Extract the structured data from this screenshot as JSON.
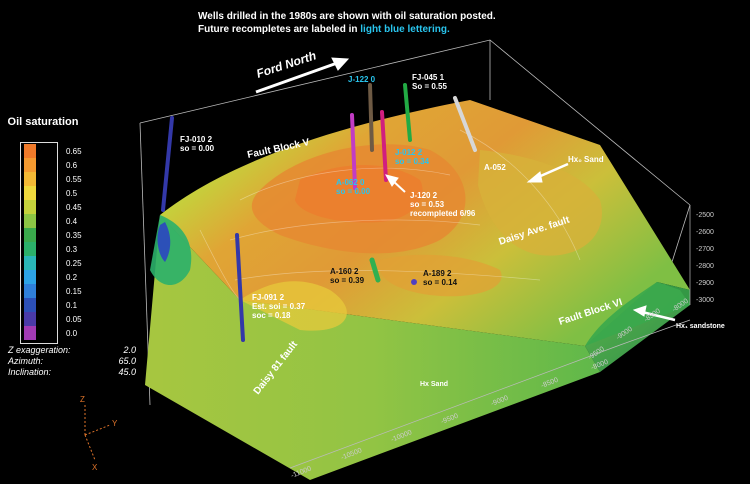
{
  "caption": {
    "line1": "Wells drilled in the 1980s are shown with oil saturation posted.",
    "line2_prefix": "Future recompletes are labeled in ",
    "line2_highlight": "light blue lettering.",
    "highlight_color": "#29c5ee"
  },
  "legend": {
    "title": "Oil saturation",
    "values": [
      "0.65",
      "0.6",
      "0.55",
      "0.5",
      "0.45",
      "0.4",
      "0.35",
      "0.3",
      "0.25",
      "0.2",
      "0.15",
      "0.1",
      "0.05",
      "0.0"
    ],
    "colors": [
      "#f07a2a",
      "#f59a30",
      "#f4b935",
      "#f0d93d",
      "#c4d23c",
      "#8cc544",
      "#3aa94c",
      "#2bb06a",
      "#2ab7b8",
      "#2da3e6",
      "#2f7fd9",
      "#2c50b8",
      "#4a3aa8",
      "#a23ab4"
    ]
  },
  "parameters": [
    {
      "label": "Z exaggeration:",
      "value": "2.0"
    },
    {
      "label": "Azimuth:",
      "value": "65.0"
    },
    {
      "label": "Inclination:",
      "value": "45.0"
    }
  ],
  "direction_label": "Ford North",
  "features": {
    "fault_block_v": "Fault Block V",
    "fault_block_vi": "Fault Block VI",
    "daisy_ave_fault": "Daisy Ave. fault",
    "daisy_81_fault": "Daisy 81 fault",
    "hx0_sand": "Hx₀ Sand",
    "hx1_sandstone": "Hx₁ sandstone",
    "hx_sand": "Hx Sand"
  },
  "wells": [
    {
      "id": "fj010",
      "name": "FJ-010 2",
      "detail": [
        "so = 0.00"
      ],
      "color": "#3338a8",
      "future": false
    },
    {
      "id": "j122",
      "name": "J-122 0",
      "detail": [],
      "color": "#6e5a44",
      "future": true
    },
    {
      "id": "fj045",
      "name": "FJ-045 1",
      "detail": [
        "So = 0.55"
      ],
      "color": "#22aa44",
      "future": false
    },
    {
      "id": "j012",
      "name": "J-012 2",
      "detail": [
        "so = 0.34"
      ],
      "color": "#d11f7f",
      "future": true
    },
    {
      "id": "a062",
      "name": "A-062 0",
      "detail": [
        "so = 0.00"
      ],
      "color": "#c23cc4",
      "future": true
    },
    {
      "id": "a052",
      "name": "A-052",
      "detail": [],
      "color": "#d7d7d7",
      "future": false
    },
    {
      "id": "j120",
      "name": "J-120 2",
      "detail": [
        "so = 0.53",
        "recompleted 6/96"
      ],
      "color": "#a23ab4",
      "future": false
    },
    {
      "id": "a160",
      "name": "A-160 2",
      "detail": [
        "so = 0.39"
      ],
      "color": "#30b050",
      "future": false
    },
    {
      "id": "a189",
      "name": "A-189 2",
      "detail": [
        "so = 0.14"
      ],
      "color": "#5040c0",
      "future": false
    },
    {
      "id": "fj091",
      "name": "FJ-091 2",
      "detail": [
        "Est. soi = 0.37",
        "soc = 0.18"
      ],
      "color": "#3338a8",
      "future": false
    }
  ],
  "axes": {
    "front_x_ticks": [
      "-11000",
      "-10500",
      "-10000",
      "-9500",
      "-9000",
      "-8500",
      "-8000"
    ],
    "right_z_ticks": [
      "-2500",
      "-2600",
      "-2700",
      "-2800",
      "-2900",
      "-3000"
    ],
    "right_y_ticks": [
      "-9500",
      "-9000",
      "-8500",
      "-8000"
    ],
    "triad": {
      "z": "Z",
      "y": "Y",
      "x": "X"
    }
  }
}
